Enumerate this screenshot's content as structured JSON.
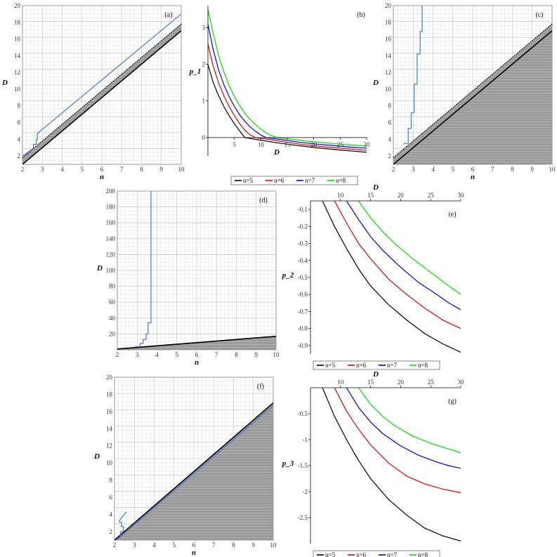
{
  "colors": {
    "n5": "#000000",
    "n6": "#e00000",
    "n7": "#0000e0",
    "n8": "#00dd00",
    "steel": "#4a78c8",
    "shade": "#9a9a9a",
    "grid": "#cfcfcf"
  },
  "chart_data": [
    {
      "id": "a",
      "type": "line",
      "label": "(a)",
      "xlabel": "n",
      "ylabel": "D",
      "xlim": [
        2,
        10
      ],
      "ylim": [
        1,
        20
      ],
      "xticks": [
        2,
        3,
        4,
        5,
        6,
        7,
        8,
        9,
        10
      ],
      "yticks": [
        2,
        4,
        6,
        8,
        10,
        12,
        14,
        16,
        18,
        20
      ],
      "grid": true,
      "regions": [
        {
          "kind": "band",
          "lower_line": [
            [
              2,
              1
            ],
            [
              10,
              17
            ]
          ],
          "upper_line": [
            [
              2,
              1.8
            ],
            [
              10,
              17.8
            ]
          ]
        }
      ],
      "lines": [
        {
          "role": "lower-boundary",
          "color": "n5",
          "x": [
            2,
            10
          ],
          "y": [
            1,
            17
          ]
        },
        {
          "role": "upper-boundary-dotted",
          "color": "n5",
          "x": [
            2,
            10
          ],
          "y": [
            1.8,
            17.8
          ]
        },
        {
          "role": "step-curve",
          "color": "steel",
          "x": [
            2,
            2.55,
            2.55,
            2.7,
            2.7,
            2.75,
            2.75,
            10
          ],
          "y": [
            2,
            2.9,
            3.4,
            3.4,
            4,
            4,
            4.7,
            19
          ]
        }
      ]
    },
    {
      "id": "b",
      "type": "line",
      "label": "(b)",
      "xlabel": "D",
      "ylabel": "p_1",
      "xlim": [
        0,
        30
      ],
      "ylim": [
        -0.5,
        3.6
      ],
      "xticks": [
        5,
        10,
        15,
        20,
        25,
        30
      ],
      "yticks": [
        0,
        1,
        2,
        3
      ],
      "grid": false,
      "legend": {
        "position": "bottom",
        "entries": [
          "n=5",
          "n=6",
          "n=7",
          "n=8"
        ]
      },
      "series": [
        {
          "name": "n=5",
          "color": "n5",
          "x": [
            0,
            1,
            2,
            3,
            4,
            5,
            6,
            7
          ],
          "y": [
            2.0,
            1.5,
            1.15,
            0.85,
            0.6,
            0.38,
            0.18,
            0.0
          ]
        },
        {
          "name": "n=6",
          "color": "n6",
          "x": [
            0,
            1,
            2,
            3,
            4,
            5,
            6,
            7,
            8,
            9
          ],
          "y": [
            2.55,
            1.95,
            1.5,
            1.15,
            0.85,
            0.6,
            0.38,
            0.2,
            0.07,
            0.0
          ]
        },
        {
          "name": "n=7",
          "color": "n7",
          "x": [
            0,
            1,
            2,
            3,
            4,
            5,
            6,
            7,
            8,
            9,
            10,
            11
          ],
          "y": [
            3.1,
            2.4,
            1.85,
            1.45,
            1.12,
            0.85,
            0.62,
            0.44,
            0.29,
            0.17,
            0.07,
            0.0
          ]
        },
        {
          "name": "n=8",
          "color": "n8",
          "x": [
            0,
            1,
            2,
            3,
            4,
            5,
            6,
            7,
            8,
            9,
            10,
            11,
            12,
            13
          ],
          "y": [
            3.5,
            2.85,
            2.25,
            1.8,
            1.42,
            1.12,
            0.87,
            0.66,
            0.49,
            0.35,
            0.23,
            0.13,
            0.06,
            0.0
          ]
        },
        {
          "name": "n=5",
          "color": "n5",
          "x": [
            7,
            10,
            13,
            16,
            20,
            25,
            30
          ],
          "y": [
            0,
            -0.07,
            -0.14,
            -0.2,
            -0.27,
            -0.34,
            -0.4
          ]
        },
        {
          "name": "n=6",
          "color": "n6",
          "x": [
            9,
            12,
            15,
            18,
            22,
            26,
            30
          ],
          "y": [
            0,
            -0.06,
            -0.13,
            -0.19,
            -0.25,
            -0.3,
            -0.35
          ]
        },
        {
          "name": "n=7",
          "color": "n7",
          "x": [
            11,
            14,
            17,
            20,
            24,
            27,
            30
          ],
          "y": [
            0,
            -0.06,
            -0.12,
            -0.17,
            -0.22,
            -0.26,
            -0.29
          ]
        },
        {
          "name": "n=8",
          "color": "n8",
          "x": [
            13,
            16,
            19,
            22,
            25,
            28,
            30
          ],
          "y": [
            0,
            -0.05,
            -0.1,
            -0.14,
            -0.18,
            -0.21,
            -0.23
          ]
        }
      ]
    },
    {
      "id": "c",
      "type": "line",
      "label": "(c)",
      "xlabel": "n",
      "ylabel": "D",
      "xlim": [
        2,
        10
      ],
      "ylim": [
        1,
        20
      ],
      "xticks": [
        2,
        3,
        4,
        5,
        6,
        7,
        8,
        9,
        10
      ],
      "yticks": [
        2,
        4,
        6,
        8,
        10,
        12,
        14,
        16,
        18,
        20
      ],
      "grid": true,
      "regions": [
        {
          "kind": "below",
          "line": [
            [
              2,
              1.8
            ],
            [
              10,
              17.8
            ]
          ]
        }
      ],
      "lines": [
        {
          "role": "lower-boundary",
          "color": "n5",
          "x": [
            2,
            10
          ],
          "y": [
            1,
            17
          ]
        },
        {
          "role": "upper-boundary-dotted",
          "color": "n5",
          "x": [
            2,
            10
          ],
          "y": [
            1.8,
            17.8
          ]
        },
        {
          "role": "step-curve",
          "color": "steel",
          "x": [
            2.5,
            2.75,
            2.75,
            2.9,
            2.9,
            3.05,
            3.05,
            3.2,
            3.2,
            3.35,
            3.35,
            3.45,
            3.45
          ],
          "y": [
            3.5,
            3.5,
            5.3,
            5.3,
            7.2,
            7.2,
            10.6,
            10.6,
            14.2,
            14.2,
            16.9,
            16.9,
            20
          ]
        }
      ]
    },
    {
      "id": "d",
      "type": "line",
      "label": "(d)",
      "xlabel": "n",
      "ylabel": "D",
      "xlim": [
        2,
        10
      ],
      "ylim": [
        0,
        200
      ],
      "xticks": [
        2,
        3,
        4,
        5,
        6,
        7,
        8,
        9,
        10
      ],
      "yticks": [
        20,
        40,
        60,
        80,
        100,
        120,
        140,
        160,
        180,
        200
      ],
      "grid": true,
      "regions": [
        {
          "kind": "below",
          "line": [
            [
              2,
              1.8
            ],
            [
              10,
              17.8
            ]
          ]
        }
      ],
      "lines": [
        {
          "role": "lower-boundary",
          "color": "n5",
          "x": [
            2,
            10
          ],
          "y": [
            1,
            17
          ]
        },
        {
          "role": "step-curve",
          "color": "steel",
          "x": [
            2.9,
            3.15,
            3.15,
            3.3,
            3.3,
            3.45,
            3.45,
            3.55,
            3.55,
            3.7,
            3.7
          ],
          "y": [
            4,
            4,
            8,
            8,
            13,
            13,
            20,
            20,
            34,
            34,
            200
          ]
        }
      ]
    },
    {
      "id": "e",
      "type": "line",
      "label": "(e)",
      "xlabel": "D",
      "ylabel": "p_2",
      "xlim": [
        5,
        30
      ],
      "ylim": [
        -0.95,
        -0.05
      ],
      "xticks": [
        10,
        15,
        20,
        25,
        30
      ],
      "yticks": [
        -0.1,
        -0.2,
        -0.3,
        -0.4,
        -0.5,
        -0.6,
        -0.7,
        -0.8,
        -0.9
      ],
      "grid": false,
      "legend": {
        "position": "bottom",
        "entries": [
          "n=5",
          "n=6",
          "n=7",
          "n=8"
        ]
      },
      "series": [
        {
          "name": "n=5",
          "color": "n5",
          "x": [
            7,
            9,
            11,
            13,
            15,
            18,
            21,
            24,
            27,
            30
          ],
          "y": [
            -0.05,
            -0.2,
            -0.33,
            -0.45,
            -0.55,
            -0.66,
            -0.75,
            -0.83,
            -0.89,
            -0.94
          ]
        },
        {
          "name": "n=6",
          "color": "n6",
          "x": [
            9,
            11,
            13,
            15,
            18,
            21,
            24,
            27,
            30
          ],
          "y": [
            -0.05,
            -0.18,
            -0.3,
            -0.39,
            -0.51,
            -0.6,
            -0.68,
            -0.75,
            -0.8
          ]
        },
        {
          "name": "n=7",
          "color": "n7",
          "x": [
            11,
            13,
            15,
            17,
            20,
            23,
            26,
            28,
            30
          ],
          "y": [
            -0.05,
            -0.16,
            -0.26,
            -0.34,
            -0.44,
            -0.53,
            -0.6,
            -0.65,
            -0.69
          ]
        },
        {
          "name": "n=8",
          "color": "n8",
          "x": [
            13,
            15,
            17,
            19,
            22,
            25,
            28,
            30
          ],
          "y": [
            -0.05,
            -0.15,
            -0.23,
            -0.3,
            -0.39,
            -0.47,
            -0.55,
            -0.6
          ]
        }
      ]
    },
    {
      "id": "f",
      "type": "line",
      "label": "(f)",
      "xlabel": "n",
      "ylabel": "D",
      "xlim": [
        2,
        10
      ],
      "ylim": [
        1,
        20
      ],
      "xticks": [
        2,
        3,
        4,
        5,
        6,
        7,
        8,
        9,
        10
      ],
      "yticks": [
        2,
        4,
        6,
        8,
        10,
        12,
        14,
        16,
        18,
        20
      ],
      "grid": true,
      "regions": [
        {
          "kind": "below",
          "line": [
            [
              2,
              1
            ],
            [
              10,
              17
            ]
          ]
        }
      ],
      "lines": [
        {
          "role": "lower-boundary",
          "color": "n5",
          "x": [
            2,
            10
          ],
          "y": [
            1,
            17
          ]
        },
        {
          "role": "parallel-curve",
          "color": "steel",
          "x": [
            2.1,
            10
          ],
          "y": [
            1.0,
            16.7
          ]
        },
        {
          "role": "step-curve",
          "color": "steel",
          "x": [
            2.2,
            2.3,
            2.3,
            2.45,
            2.45,
            2.35,
            2.35,
            2.25,
            2.25,
            2.6
          ],
          "y": [
            1.3,
            1.3,
            2.0,
            2.0,
            2.6,
            2.6,
            3.1,
            3.1,
            3.3,
            4.3
          ]
        }
      ]
    },
    {
      "id": "g",
      "type": "line",
      "label": "(g)",
      "xlabel": "D",
      "ylabel": "p_3",
      "xlim": [
        5,
        30
      ],
      "ylim": [
        -3.0,
        0.0
      ],
      "xticks": [
        10,
        15,
        20,
        25,
        30
      ],
      "yticks": [
        -0.5,
        -1,
        -1.5,
        -2,
        -2.5
      ],
      "grid": false,
      "legend": {
        "position": "bottom",
        "entries": [
          "n=5",
          "n=6",
          "n=7",
          "n=8"
        ]
      },
      "series": [
        {
          "name": "n=5",
          "color": "n5",
          "x": [
            7,
            9,
            11,
            13,
            15,
            18,
            21,
            24,
            27,
            30
          ],
          "y": [
            0,
            -0.55,
            -1.0,
            -1.4,
            -1.75,
            -2.15,
            -2.45,
            -2.7,
            -2.85,
            -2.95
          ]
        },
        {
          "name": "n=6",
          "color": "n6",
          "x": [
            9,
            11,
            13,
            15,
            18,
            21,
            24,
            27,
            30
          ],
          "y": [
            0,
            -0.45,
            -0.8,
            -1.1,
            -1.45,
            -1.7,
            -1.85,
            -1.95,
            -2.02
          ]
        },
        {
          "name": "n=7",
          "color": "n7",
          "x": [
            11,
            13,
            15,
            17,
            20,
            23,
            26,
            28,
            30
          ],
          "y": [
            0,
            -0.38,
            -0.66,
            -0.88,
            -1.12,
            -1.3,
            -1.43,
            -1.5,
            -1.55
          ]
        },
        {
          "name": "n=8",
          "color": "n8",
          "x": [
            13,
            15,
            17,
            19,
            22,
            25,
            28,
            30
          ],
          "y": [
            0,
            -0.32,
            -0.55,
            -0.73,
            -0.93,
            -1.07,
            -1.18,
            -1.25
          ]
        }
      ]
    }
  ]
}
